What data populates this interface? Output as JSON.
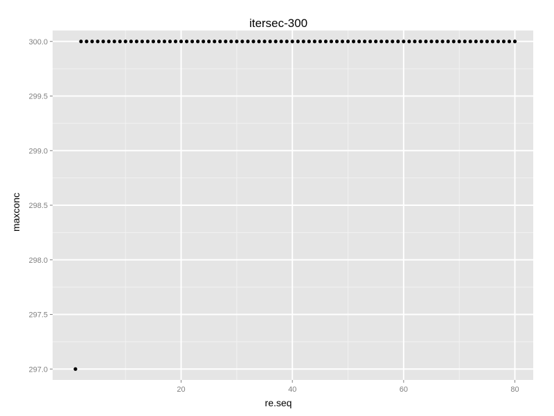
{
  "chart_data": {
    "type": "scatter",
    "title": "itersec-300",
    "xlabel": "re.seq",
    "ylabel": "maxconc",
    "xlim": [
      -3.1,
      83.3
    ],
    "ylim": [
      296.9,
      300.1
    ],
    "xticks": [
      20,
      40,
      60,
      80
    ],
    "xtick_labels": [
      "20",
      "40",
      "60",
      "80"
    ],
    "yticks": [
      297.0,
      297.5,
      298.0,
      298.5,
      299.0,
      299.5,
      300.0
    ],
    "ytick_labels": [
      "297.0",
      "297.5",
      "298.0",
      "298.5",
      "299.0",
      "299.5",
      "300.0"
    ],
    "grid": true,
    "legend": "none",
    "colors": {
      "panel": "#e5e5e5",
      "grid_major": "#ffffff",
      "grid_minor": "#f2f2f2",
      "point": "#000000"
    },
    "series": [
      {
        "points": [
          {
            "x": 1,
            "y": 297
          },
          {
            "x": 2,
            "y": 300
          },
          {
            "x": 3,
            "y": 300
          },
          {
            "x": 4,
            "y": 300
          },
          {
            "x": 5,
            "y": 300
          },
          {
            "x": 6,
            "y": 300
          },
          {
            "x": 7,
            "y": 300
          },
          {
            "x": 8,
            "y": 300
          },
          {
            "x": 9,
            "y": 300
          },
          {
            "x": 10,
            "y": 300
          },
          {
            "x": 11,
            "y": 300
          },
          {
            "x": 12,
            "y": 300
          },
          {
            "x": 13,
            "y": 300
          },
          {
            "x": 14,
            "y": 300
          },
          {
            "x": 15,
            "y": 300
          },
          {
            "x": 16,
            "y": 300
          },
          {
            "x": 17,
            "y": 300
          },
          {
            "x": 18,
            "y": 300
          },
          {
            "x": 19,
            "y": 300
          },
          {
            "x": 20,
            "y": 300
          },
          {
            "x": 21,
            "y": 300
          },
          {
            "x": 22,
            "y": 300
          },
          {
            "x": 23,
            "y": 300
          },
          {
            "x": 24,
            "y": 300
          },
          {
            "x": 25,
            "y": 300
          },
          {
            "x": 26,
            "y": 300
          },
          {
            "x": 27,
            "y": 300
          },
          {
            "x": 28,
            "y": 300
          },
          {
            "x": 29,
            "y": 300
          },
          {
            "x": 30,
            "y": 300
          },
          {
            "x": 31,
            "y": 300
          },
          {
            "x": 32,
            "y": 300
          },
          {
            "x": 33,
            "y": 300
          },
          {
            "x": 34,
            "y": 300
          },
          {
            "x": 35,
            "y": 300
          },
          {
            "x": 36,
            "y": 300
          },
          {
            "x": 37,
            "y": 300
          },
          {
            "x": 38,
            "y": 300
          },
          {
            "x": 39,
            "y": 300
          },
          {
            "x": 40,
            "y": 300
          },
          {
            "x": 41,
            "y": 300
          },
          {
            "x": 42,
            "y": 300
          },
          {
            "x": 43,
            "y": 300
          },
          {
            "x": 44,
            "y": 300
          },
          {
            "x": 45,
            "y": 300
          },
          {
            "x": 46,
            "y": 300
          },
          {
            "x": 47,
            "y": 300
          },
          {
            "x": 48,
            "y": 300
          },
          {
            "x": 49,
            "y": 300
          },
          {
            "x": 50,
            "y": 300
          },
          {
            "x": 51,
            "y": 300
          },
          {
            "x": 52,
            "y": 300
          },
          {
            "x": 53,
            "y": 300
          },
          {
            "x": 54,
            "y": 300
          },
          {
            "x": 55,
            "y": 300
          },
          {
            "x": 56,
            "y": 300
          },
          {
            "x": 57,
            "y": 300
          },
          {
            "x": 58,
            "y": 300
          },
          {
            "x": 59,
            "y": 300
          },
          {
            "x": 60,
            "y": 300
          },
          {
            "x": 61,
            "y": 300
          },
          {
            "x": 62,
            "y": 300
          },
          {
            "x": 63,
            "y": 300
          },
          {
            "x": 64,
            "y": 300
          },
          {
            "x": 65,
            "y": 300
          },
          {
            "x": 66,
            "y": 300
          },
          {
            "x": 67,
            "y": 300
          },
          {
            "x": 68,
            "y": 300
          },
          {
            "x": 69,
            "y": 300
          },
          {
            "x": 70,
            "y": 300
          },
          {
            "x": 71,
            "y": 300
          },
          {
            "x": 72,
            "y": 300
          },
          {
            "x": 73,
            "y": 300
          },
          {
            "x": 74,
            "y": 300
          },
          {
            "x": 75,
            "y": 300
          },
          {
            "x": 76,
            "y": 300
          },
          {
            "x": 77,
            "y": 300
          },
          {
            "x": 78,
            "y": 300
          },
          {
            "x": 79,
            "y": 300
          },
          {
            "x": 80,
            "y": 300
          }
        ]
      }
    ]
  }
}
